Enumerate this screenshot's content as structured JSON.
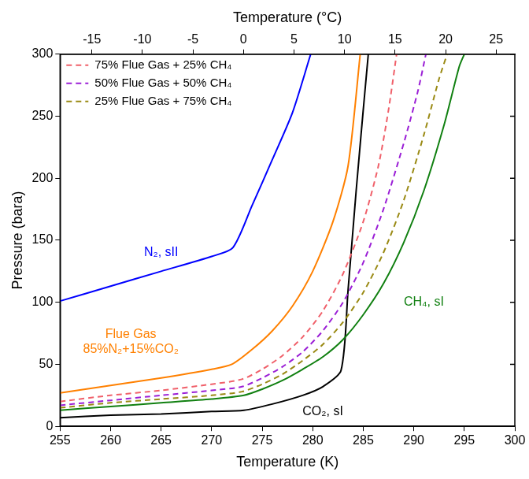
{
  "chart_data": {
    "type": "line",
    "x_label": "Temperature (K)",
    "x2_label": "Temperature (°C)",
    "y_label": "Pressure (bara)",
    "xlim": [
      255,
      300
    ],
    "xticks": [
      255,
      260,
      265,
      270,
      275,
      280,
      285,
      290,
      295,
      300
    ],
    "x2lim": [
      -18.15,
      26.85
    ],
    "x2ticks": [
      -15,
      -10,
      -5,
      0,
      5,
      10,
      15,
      20,
      25
    ],
    "ylim": [
      0,
      300
    ],
    "yticks": [
      0,
      50,
      100,
      150,
      200,
      250,
      300
    ],
    "grid": false,
    "legend": "upper left",
    "series": [
      {
        "color": "#0000ff",
        "line_style": "solid",
        "x": [
          255,
          260,
          265,
          270,
          272.1,
          274,
          276,
          278,
          279.8
        ],
        "values": [
          101,
          113,
          125,
          137,
          144,
          178,
          215,
          253,
          300
        ]
      },
      {
        "color": "#ff8000",
        "line_style": "solid",
        "x": [
          255,
          260,
          265,
          270,
          272,
          274,
          276,
          278,
          280,
          282,
          283.5,
          284.7
        ],
        "values": [
          27,
          33,
          39,
          46,
          50,
          62,
          77,
          97,
          125,
          165,
          210,
          300
        ]
      },
      {
        "name": "75% Flue Gas + 25% CH₄",
        "color": "#f0606a",
        "line_style": "dashed",
        "x": [
          255,
          260,
          265,
          270,
          273,
          275,
          277,
          279,
          281,
          283,
          285,
          286.5,
          287.5,
          288.3
        ],
        "values": [
          20,
          25,
          29,
          34,
          38,
          46,
          57,
          72,
          93,
          123,
          165,
          210,
          255,
          300
        ]
      },
      {
        "name": "50% Flue Gas + 50% CH₄",
        "color": "#9b1fd6",
        "line_style": "dashed",
        "x": [
          255,
          260,
          265,
          270,
          273,
          275,
          277,
          279,
          281,
          283,
          285,
          287,
          289,
          290.4,
          291.2
        ],
        "values": [
          17,
          21,
          25,
          29,
          32,
          39,
          48,
          60,
          77,
          100,
          132,
          175,
          228,
          270,
          300
        ]
      },
      {
        "name": "25% Flue Gas + 75% CH₄",
        "color": "#9a8a14",
        "line_style": "dashed",
        "x": [
          255,
          260,
          265,
          270,
          273,
          275,
          277,
          279,
          281,
          283,
          285,
          287,
          289,
          291,
          292.5,
          293.3
        ],
        "values": [
          15,
          19,
          22,
          25,
          28,
          34,
          42,
          53,
          66,
          84,
          108,
          140,
          182,
          235,
          280,
          300
        ]
      },
      {
        "color": "#118011",
        "line_style": "solid",
        "x": [
          255,
          260,
          265,
          270,
          273.2,
          275,
          277,
          279,
          281,
          283,
          285,
          287,
          289,
          291,
          293,
          294.5,
          295
        ],
        "values": [
          13,
          16,
          19,
          22,
          25,
          30,
          37,
          46,
          56,
          70,
          90,
          115,
          148,
          190,
          243,
          290,
          300
        ]
      },
      {
        "color": "#000000",
        "line_style": "solid",
        "x": [
          255,
          260,
          265,
          270,
          273.2,
          276,
          279,
          281,
          282.8,
          283.5,
          284.3,
          285,
          285.5
        ],
        "values": [
          7,
          9,
          10,
          12,
          13,
          18,
          25,
          32,
          45,
          110,
          190,
          255,
          300
        ]
      }
    ],
    "annotations": [
      {
        "text": [
          "N₂, sII"
        ],
        "x": 265,
        "y": 140,
        "color": "#0000ff"
      },
      {
        "text": [
          "Flue Gas",
          "85%N₂+15%CO₂"
        ],
        "x": 262,
        "y": 68,
        "color": "#ff8000"
      },
      {
        "text": [
          "CH₄, sI"
        ],
        "x": 291,
        "y": 100,
        "color": "#118011"
      },
      {
        "text": [
          "CO₂, sI"
        ],
        "x": 281,
        "y": 12,
        "color": "#000000"
      }
    ]
  }
}
